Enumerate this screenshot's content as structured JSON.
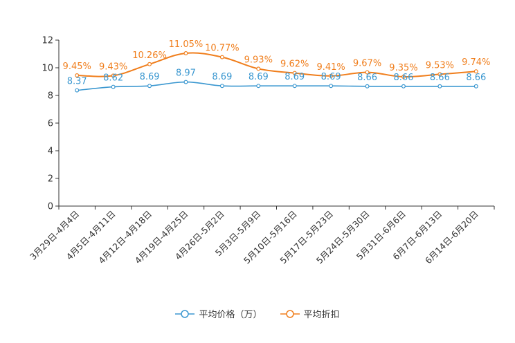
{
  "chart_data": {
    "type": "line",
    "categories": [
      "3月29日-4月4日",
      "4月5日-4月11日",
      "4月12日-4月18日",
      "4月19日-4月25日",
      "4月26日-5月2日",
      "5月3日-5月9日",
      "5月10日-5月16日",
      "5月17日-5月23日",
      "5月24日-5月30日",
      "5月31日-6月6日",
      "6月7日-6月13日",
      "6月14日-6月20日"
    ],
    "series": [
      {
        "name": "平均价格（万）",
        "color": "#3a97d0",
        "values": [
          8.37,
          8.62,
          8.69,
          8.97,
          8.69,
          8.69,
          8.69,
          8.69,
          8.66,
          8.66,
          8.66,
          8.66
        ],
        "labels": [
          "8.37",
          "8.62",
          "8.69",
          "8.97",
          "8.69",
          "8.69",
          "8.69",
          "8.69",
          "8.66",
          "8.66",
          "8.66",
          "8.66"
        ]
      },
      {
        "name": "平均折扣",
        "color": "#f07e1c",
        "values": [
          9.45,
          9.43,
          10.26,
          11.05,
          10.77,
          9.93,
          9.62,
          9.41,
          9.67,
          9.35,
          9.53,
          9.74
        ],
        "labels": [
          "9.45%",
          "9.43%",
          "10.26%",
          "11.05%",
          "10.77%",
          "9.93%",
          "9.62%",
          "9.41%",
          "9.67%",
          "9.35%",
          "9.53%",
          "9.74%"
        ]
      }
    ],
    "ylim": [
      0,
      12
    ],
    "yticks": [
      "0",
      "2",
      "4",
      "6",
      "8",
      "10",
      "12"
    ],
    "title": "",
    "xlabel": "",
    "ylabel": "",
    "grid": false,
    "legend_position": "bottom-center"
  }
}
